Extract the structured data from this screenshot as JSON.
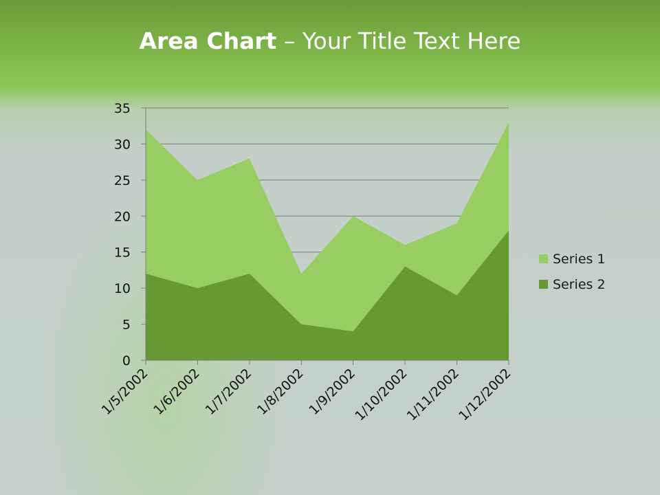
{
  "slide": {
    "title_bold": "Area Chart",
    "title_rest": " – Your Title Text Here"
  },
  "chart_data": {
    "type": "area",
    "title": "",
    "categories": [
      "1/5/2002",
      "1/6/2002",
      "1/7/2002",
      "1/8/2002",
      "1/9/2002",
      "1/10/2002",
      "1/11/2002",
      "1/12/2002"
    ],
    "series": [
      {
        "name": "Series 1",
        "values": [
          32,
          25,
          28,
          12,
          20,
          16,
          19,
          33
        ],
        "color": "#97cd63"
      },
      {
        "name": "Series 2",
        "values": [
          12,
          10,
          12,
          5,
          4,
          13,
          9,
          18
        ],
        "color": "#669933"
      }
    ],
    "ylim": [
      0,
      35
    ],
    "yticks": [
      0,
      5,
      10,
      15,
      20,
      25,
      30,
      35
    ],
    "grid": true,
    "legend": "right"
  }
}
